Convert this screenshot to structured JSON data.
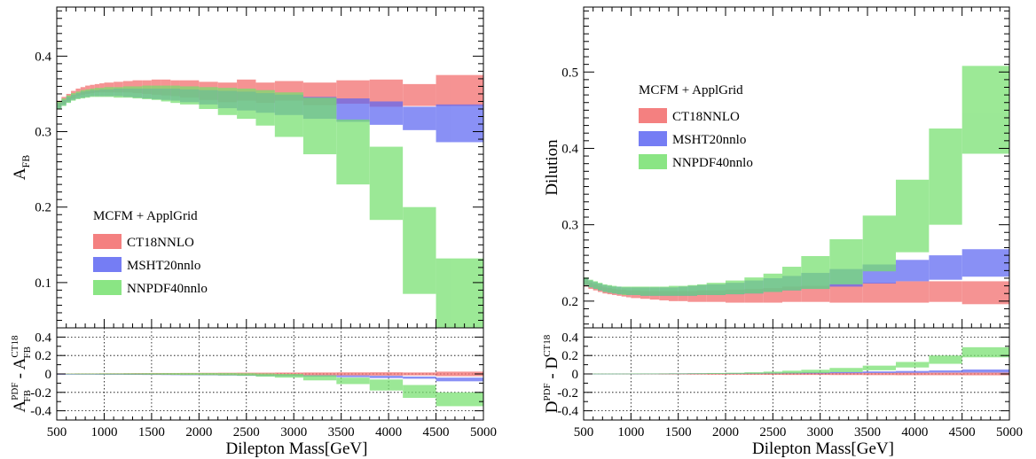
{
  "chart_data": [
    {
      "type": "area",
      "xlabel": "Dilepton Mass[GeV]",
      "ylabel": "A_FB",
      "ylim": [
        0.04,
        0.465
      ],
      "xlim": [
        500,
        5000
      ],
      "yticks": [
        0.1,
        0.2,
        0.3,
        0.4
      ],
      "ratio_ylabel": "A_FB^PDF - A_FB^CT18",
      "ratio_ylim": [
        -0.5,
        0.5
      ],
      "ratio_yticks": [
        0.4,
        0.2,
        0,
        -0.2,
        -0.4
      ],
      "legend_title": "MCFM + ApplGrid",
      "legend_position": "bottom-left",
      "grid": "ratio panel only (dotted)",
      "x_edges": [
        500,
        550,
        600,
        650,
        700,
        750,
        800,
        850,
        900,
        950,
        1000,
        1100,
        1200,
        1300,
        1400,
        1500,
        1600,
        1700,
        1800,
        2000,
        2200,
        2400,
        2600,
        2800,
        3100,
        3450,
        3800,
        4150,
        4500,
        5000
      ],
      "series": [
        {
          "name": "CT18NNLO",
          "color": "#f26a6a",
          "low": [
            0.333,
            0.337,
            0.341,
            0.344,
            0.347,
            0.349,
            0.35,
            0.351,
            0.352,
            0.352,
            0.352,
            0.352,
            0.352,
            0.351,
            0.35,
            0.349,
            0.348,
            0.347,
            0.345,
            0.342,
            0.339,
            0.341,
            0.338,
            0.341,
            0.335,
            0.337,
            0.333,
            0.334,
            0.334
          ],
          "high": [
            0.341,
            0.346,
            0.35,
            0.354,
            0.357,
            0.359,
            0.361,
            0.362,
            0.363,
            0.364,
            0.365,
            0.366,
            0.367,
            0.368,
            0.368,
            0.369,
            0.369,
            0.368,
            0.368,
            0.366,
            0.365,
            0.369,
            0.365,
            0.367,
            0.365,
            0.368,
            0.369,
            0.363,
            0.375
          ]
        },
        {
          "name": "MSHT20nnlo",
          "color": "#5d66f2",
          "low": [
            0.331,
            0.335,
            0.339,
            0.342,
            0.344,
            0.345,
            0.346,
            0.347,
            0.347,
            0.347,
            0.347,
            0.347,
            0.346,
            0.345,
            0.344,
            0.343,
            0.342,
            0.341,
            0.339,
            0.336,
            0.331,
            0.328,
            0.325,
            0.322,
            0.317,
            0.313,
            0.309,
            0.302,
            0.286
          ],
          "high": [
            0.338,
            0.342,
            0.346,
            0.349,
            0.351,
            0.353,
            0.354,
            0.355,
            0.355,
            0.356,
            0.356,
            0.357,
            0.357,
            0.357,
            0.357,
            0.357,
            0.357,
            0.357,
            0.356,
            0.355,
            0.354,
            0.353,
            0.351,
            0.349,
            0.346,
            0.344,
            0.34,
            0.333,
            0.336
          ]
        },
        {
          "name": "NNPDF40nnlo",
          "color": "#76e06e",
          "low": [
            0.33,
            0.334,
            0.338,
            0.341,
            0.343,
            0.344,
            0.345,
            0.346,
            0.346,
            0.346,
            0.346,
            0.345,
            0.345,
            0.344,
            0.343,
            0.342,
            0.34,
            0.338,
            0.336,
            0.33,
            0.322,
            0.317,
            0.308,
            0.293,
            0.27,
            0.23,
            0.183,
            0.085,
            0.04
          ],
          "high": [
            0.34,
            0.344,
            0.348,
            0.351,
            0.353,
            0.355,
            0.356,
            0.357,
            0.358,
            0.358,
            0.359,
            0.359,
            0.36,
            0.36,
            0.361,
            0.361,
            0.361,
            0.361,
            0.36,
            0.359,
            0.358,
            0.357,
            0.355,
            0.352,
            0.345,
            0.316,
            0.28,
            0.2,
            0.132
          ]
        }
      ],
      "ratio_series": [
        {
          "name": "CT18NNLO",
          "color": "#f26a6a",
          "low": [
            -0.005,
            -0.005,
            -0.005,
            -0.005,
            -0.006,
            -0.006,
            -0.006,
            -0.006,
            -0.006,
            -0.007,
            -0.007,
            -0.007,
            -0.008,
            -0.009,
            -0.009,
            -0.01,
            -0.01,
            -0.01,
            -0.011,
            -0.012,
            -0.013,
            -0.014,
            -0.014,
            -0.015,
            -0.016,
            -0.017,
            -0.018,
            -0.016,
            -0.025
          ],
          "high": [
            0.005,
            0.005,
            0.005,
            0.005,
            0.006,
            0.006,
            0.006,
            0.006,
            0.006,
            0.007,
            0.007,
            0.007,
            0.008,
            0.009,
            0.009,
            0.01,
            0.01,
            0.01,
            0.011,
            0.012,
            0.013,
            0.014,
            0.014,
            0.015,
            0.016,
            0.017,
            0.018,
            0.016,
            0.025
          ]
        },
        {
          "name": "MSHT20nnlo",
          "color": "#5d66f2",
          "low": [
            -0.005,
            -0.005,
            -0.005,
            -0.005,
            -0.006,
            -0.006,
            -0.006,
            -0.006,
            -0.007,
            -0.007,
            -0.007,
            -0.008,
            -0.008,
            -0.009,
            -0.01,
            -0.01,
            -0.011,
            -0.012,
            -0.013,
            -0.015,
            -0.017,
            -0.02,
            -0.022,
            -0.025,
            -0.03,
            -0.035,
            -0.045,
            -0.052,
            -0.08
          ],
          "high": [
            0.0,
            0.0,
            0.0,
            0.0,
            0.0,
            0.0,
            0.0,
            0.0,
            -0.001,
            -0.001,
            -0.001,
            -0.001,
            -0.002,
            -0.002,
            -0.003,
            -0.003,
            -0.004,
            -0.005,
            -0.006,
            -0.007,
            -0.008,
            -0.009,
            -0.01,
            -0.012,
            -0.014,
            -0.016,
            -0.02,
            -0.028,
            -0.04
          ]
        },
        {
          "name": "NNPDF40nnlo",
          "color": "#76e06e",
          "low": [
            -0.004,
            -0.004,
            -0.004,
            -0.004,
            -0.005,
            -0.005,
            -0.005,
            -0.005,
            -0.005,
            -0.006,
            -0.006,
            -0.006,
            -0.007,
            -0.007,
            -0.008,
            -0.008,
            -0.009,
            -0.01,
            -0.011,
            -0.013,
            -0.016,
            -0.02,
            -0.03,
            -0.04,
            -0.07,
            -0.11,
            -0.18,
            -0.26,
            -0.35
          ],
          "high": [
            0.004,
            0.004,
            0.004,
            0.004,
            0.005,
            0.005,
            0.005,
            0.005,
            0.005,
            0.006,
            0.006,
            0.006,
            0.007,
            0.007,
            0.008,
            0.008,
            0.009,
            0.009,
            0.01,
            0.01,
            0.01,
            0.008,
            0.004,
            0.0,
            -0.015,
            -0.04,
            -0.06,
            -0.12,
            -0.2
          ]
        }
      ]
    },
    {
      "type": "area",
      "xlabel": "Dilepton Mass[GeV]",
      "ylabel": "Dilution",
      "ylim": [
        0.165,
        0.585
      ],
      "xlim": [
        500,
        5000
      ],
      "yticks": [
        0.2,
        0.3,
        0.4,
        0.5
      ],
      "ratio_ylabel": "D^PDF - D^CT18",
      "ratio_ylim": [
        -0.5,
        0.5
      ],
      "ratio_yticks": [
        0.4,
        0.2,
        0,
        -0.2,
        -0.4
      ],
      "legend_title": "MCFM + ApplGrid",
      "legend_position": "top-left",
      "grid": "ratio panel only (dotted)",
      "x_edges": [
        500,
        550,
        600,
        650,
        700,
        750,
        800,
        850,
        900,
        950,
        1000,
        1100,
        1200,
        1300,
        1400,
        1500,
        1600,
        1700,
        1800,
        2000,
        2200,
        2400,
        2600,
        2800,
        3100,
        3450,
        3800,
        4150,
        4500,
        5000
      ],
      "series": [
        {
          "name": "CT18NNLO",
          "color": "#f26a6a",
          "low": [
            0.219,
            0.216,
            0.214,
            0.212,
            0.21,
            0.209,
            0.208,
            0.207,
            0.206,
            0.205,
            0.204,
            0.203,
            0.202,
            0.201,
            0.2,
            0.2,
            0.199,
            0.199,
            0.199,
            0.198,
            0.198,
            0.198,
            0.199,
            0.199,
            0.198,
            0.198,
            0.198,
            0.199,
            0.196
          ],
          "high": [
            0.227,
            0.224,
            0.222,
            0.22,
            0.218,
            0.217,
            0.216,
            0.215,
            0.215,
            0.214,
            0.214,
            0.213,
            0.213,
            0.213,
            0.213,
            0.213,
            0.213,
            0.214,
            0.214,
            0.215,
            0.216,
            0.217,
            0.219,
            0.22,
            0.222,
            0.224,
            0.226,
            0.226,
            0.226
          ]
        },
        {
          "name": "MSHT20nnlo",
          "color": "#5d66f2",
          "low": [
            0.221,
            0.218,
            0.216,
            0.214,
            0.212,
            0.211,
            0.21,
            0.209,
            0.209,
            0.208,
            0.208,
            0.207,
            0.207,
            0.207,
            0.207,
            0.207,
            0.207,
            0.208,
            0.208,
            0.209,
            0.21,
            0.212,
            0.214,
            0.216,
            0.219,
            0.223,
            0.226,
            0.228,
            0.232
          ],
          "high": [
            0.23,
            0.227,
            0.225,
            0.223,
            0.221,
            0.22,
            0.219,
            0.219,
            0.218,
            0.218,
            0.218,
            0.218,
            0.218,
            0.218,
            0.218,
            0.219,
            0.22,
            0.221,
            0.222,
            0.224,
            0.227,
            0.23,
            0.233,
            0.237,
            0.242,
            0.248,
            0.254,
            0.26,
            0.268
          ]
        },
        {
          "name": "NNPDF40nnlo",
          "color": "#76e06e",
          "low": [
            0.221,
            0.218,
            0.216,
            0.214,
            0.212,
            0.211,
            0.21,
            0.209,
            0.208,
            0.208,
            0.208,
            0.207,
            0.207,
            0.207,
            0.207,
            0.207,
            0.207,
            0.208,
            0.208,
            0.209,
            0.21,
            0.212,
            0.214,
            0.216,
            0.222,
            0.239,
            0.264,
            0.3,
            0.393
          ],
          "high": [
            0.231,
            0.228,
            0.226,
            0.224,
            0.222,
            0.221,
            0.22,
            0.219,
            0.219,
            0.219,
            0.219,
            0.219,
            0.219,
            0.219,
            0.22,
            0.22,
            0.221,
            0.222,
            0.224,
            0.227,
            0.231,
            0.236,
            0.245,
            0.259,
            0.281,
            0.312,
            0.359,
            0.426,
            0.508
          ]
        }
      ],
      "ratio_series": [
        {
          "name": "CT18NNLO",
          "color": "#f26a6a",
          "low": [
            -0.004,
            -0.004,
            -0.004,
            -0.004,
            -0.004,
            -0.004,
            -0.004,
            -0.004,
            -0.005,
            -0.005,
            -0.005,
            -0.005,
            -0.005,
            -0.006,
            -0.006,
            -0.006,
            -0.007,
            -0.007,
            -0.008,
            -0.008,
            -0.009,
            -0.01,
            -0.011,
            -0.011,
            -0.012,
            -0.013,
            -0.014,
            -0.014,
            -0.015
          ],
          "high": [
            0.004,
            0.004,
            0.004,
            0.004,
            0.004,
            0.004,
            0.004,
            0.004,
            0.005,
            0.005,
            0.005,
            0.005,
            0.005,
            0.006,
            0.006,
            0.006,
            0.007,
            0.007,
            0.008,
            0.008,
            0.009,
            0.01,
            0.011,
            0.011,
            0.012,
            0.013,
            0.014,
            0.014,
            0.015
          ]
        },
        {
          "name": "MSHT20nnlo",
          "color": "#5d66f2",
          "low": [
            -0.001,
            -0.001,
            -0.001,
            -0.001,
            -0.001,
            -0.001,
            -0.001,
            -0.001,
            -0.001,
            -0.001,
            -0.001,
            -0.001,
            -0.001,
            -0.001,
            0.0,
            0.0,
            0.0,
            0.0,
            0.001,
            0.001,
            0.002,
            0.003,
            0.004,
            0.005,
            0.008,
            0.01,
            0.012,
            0.015,
            0.015
          ],
          "high": [
            0.003,
            0.003,
            0.003,
            0.003,
            0.003,
            0.003,
            0.004,
            0.004,
            0.004,
            0.004,
            0.004,
            0.005,
            0.005,
            0.005,
            0.006,
            0.006,
            0.007,
            0.007,
            0.008,
            0.01,
            0.012,
            0.014,
            0.016,
            0.018,
            0.022,
            0.027,
            0.032,
            0.038,
            0.048
          ]
        },
        {
          "name": "NNPDF40nnlo",
          "color": "#76e06e",
          "low": [
            -0.002,
            -0.002,
            -0.002,
            -0.002,
            -0.002,
            -0.002,
            -0.002,
            -0.002,
            -0.002,
            -0.002,
            -0.002,
            -0.002,
            -0.002,
            -0.002,
            -0.002,
            -0.001,
            -0.001,
            -0.001,
            0.0,
            0.001,
            0.002,
            0.004,
            0.006,
            0.01,
            0.02,
            0.04,
            0.07,
            0.11,
            0.18
          ],
          "high": [
            0.004,
            0.004,
            0.004,
            0.004,
            0.004,
            0.004,
            0.004,
            0.004,
            0.004,
            0.004,
            0.005,
            0.005,
            0.005,
            0.005,
            0.006,
            0.006,
            0.007,
            0.008,
            0.01,
            0.013,
            0.018,
            0.025,
            0.035,
            0.045,
            0.065,
            0.09,
            0.13,
            0.2,
            0.29
          ]
        }
      ]
    }
  ]
}
